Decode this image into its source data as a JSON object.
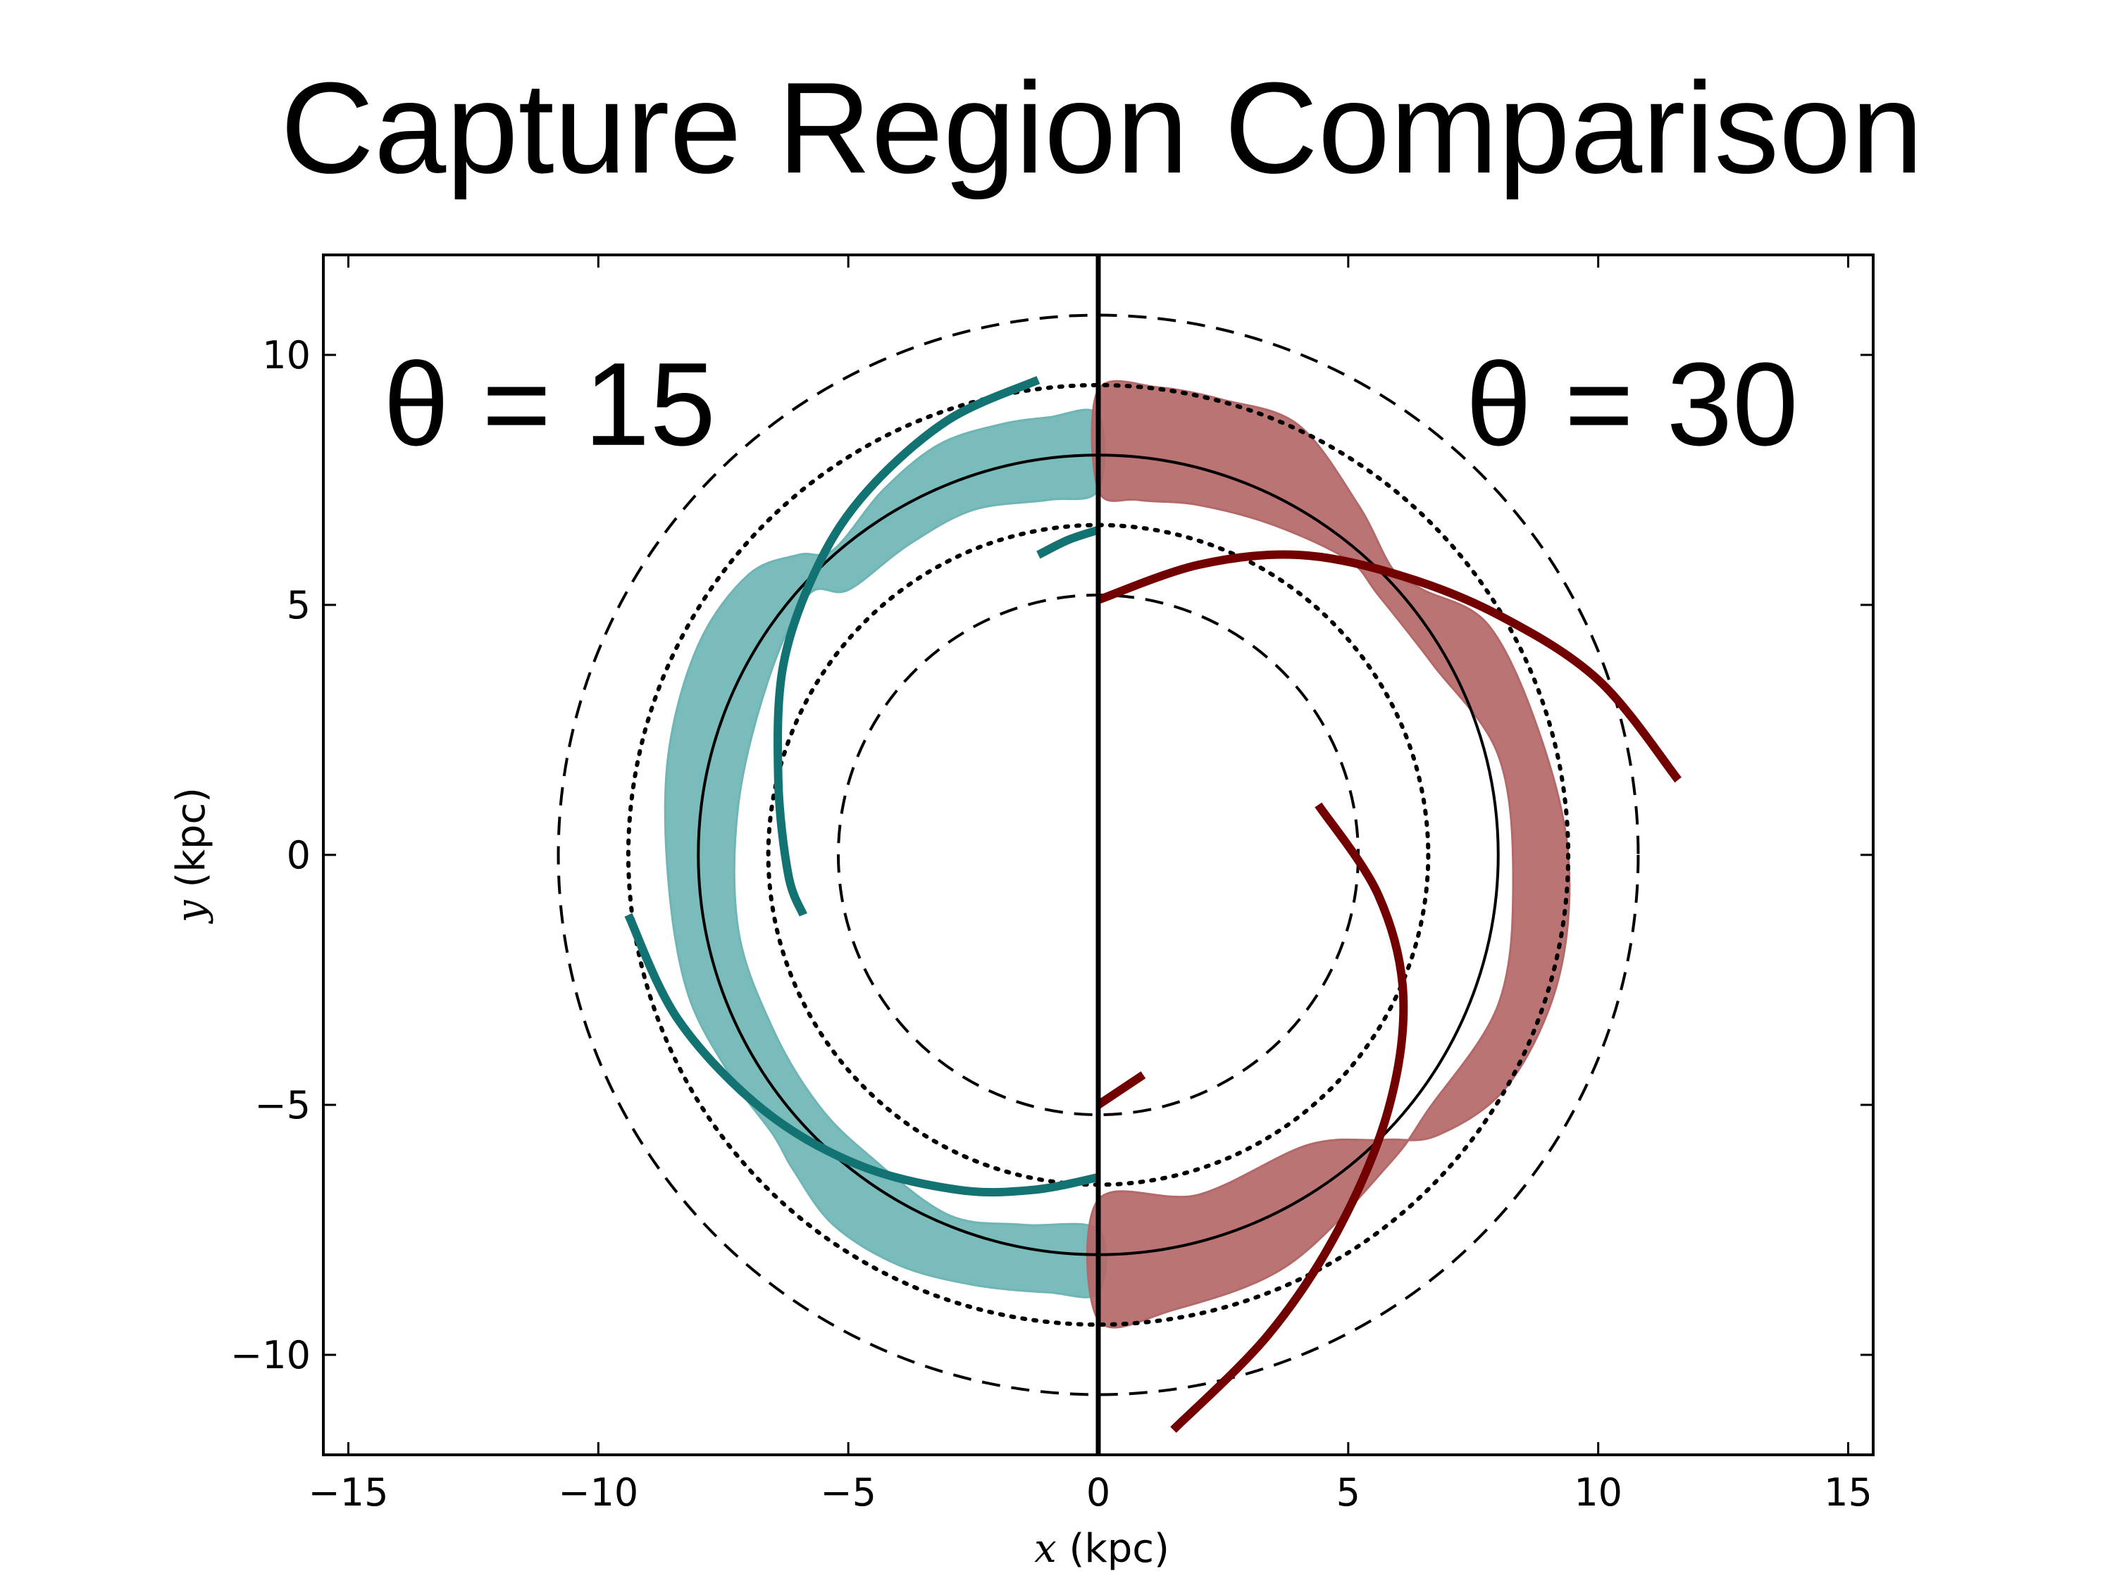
{
  "chart_data": {
    "type": "line",
    "title": "Capture Region Comparison",
    "xlabel": "x (kpc)",
    "ylabel": "y (kpc)",
    "xlabel_var": "x",
    "xlabel_unit": "(kpc)",
    "ylabel_var": "y",
    "ylabel_unit": "(kpc)",
    "xlim": [
      -15.5,
      15.5
    ],
    "ylim": [
      -12,
      12
    ],
    "xticks": [
      -15,
      -10,
      -5,
      0,
      5,
      10,
      15
    ],
    "yticks": [
      -10,
      -5,
      0,
      5,
      10
    ],
    "xtick_labels": [
      "−15",
      "−10",
      "−5",
      "0",
      "5",
      "10",
      "15"
    ],
    "ytick_labels": [
      "−10",
      "−5",
      "0",
      "5",
      "10"
    ],
    "divider": {
      "x": 0
    },
    "reference_circles": [
      {
        "name": "outer-dashed",
        "radius": 10.8,
        "style": "dashed"
      },
      {
        "name": "outer-dotted",
        "radius": 9.4,
        "style": "dotted"
      },
      {
        "name": "solar",
        "radius": 8.0,
        "style": "solid"
      },
      {
        "name": "inner-dotted",
        "radius": 6.6,
        "style": "dotted"
      },
      {
        "name": "inner-dashed",
        "radius": 5.2,
        "style": "dashed"
      }
    ],
    "annotations": [
      {
        "text": "θ = 15",
        "x": -14.3,
        "y": 8.2,
        "align": "start"
      },
      {
        "text": "θ = 30",
        "x": 14.0,
        "y": 8.2,
        "align": "end"
      }
    ],
    "panels": [
      {
        "name": "theta-15",
        "side": "left",
        "color": "#137272",
        "region_color": "#6fb5b5",
        "region": [
          [
            0,
            8.8
          ],
          [
            -1.0,
            8.75
          ],
          [
            -2.0,
            8.6
          ],
          [
            -3.2,
            8.2
          ],
          [
            -4.3,
            7.3
          ],
          [
            -5.3,
            6.1
          ],
          [
            -6.0,
            6.0
          ],
          [
            -7.0,
            5.6
          ],
          [
            -8.0,
            4.2
          ],
          [
            -8.6,
            2.0
          ],
          [
            -8.6,
            -0.5
          ],
          [
            -8.2,
            -2.8
          ],
          [
            -7.3,
            -4.5
          ],
          [
            -6.5,
            -5.6
          ],
          [
            -6.1,
            -6.3
          ],
          [
            -5.3,
            -7.4
          ],
          [
            -4.0,
            -8.2
          ],
          [
            -2.5,
            -8.6
          ],
          [
            -1.0,
            -8.75
          ],
          [
            0,
            -8.75
          ],
          [
            0,
            -7.5
          ],
          [
            -1.5,
            -7.4
          ],
          [
            -3.0,
            -7.2
          ],
          [
            -4.6,
            -6.0
          ],
          [
            -5.6,
            -5.0
          ],
          [
            -6.5,
            -3.5
          ],
          [
            -7.2,
            -1.5
          ],
          [
            -7.2,
            1.0
          ],
          [
            -6.6,
            3.5
          ],
          [
            -5.8,
            5.2
          ],
          [
            -5.0,
            5.3
          ],
          [
            -3.8,
            6.2
          ],
          [
            -2.5,
            6.9
          ],
          [
            -1.0,
            7.1
          ],
          [
            0,
            7.3
          ]
        ],
        "arms": [
          [
            [
              -1.2,
              9.5
            ],
            [
              -3.0,
              8.7
            ],
            [
              -4.6,
              7.3
            ],
            [
              -5.6,
              5.8
            ],
            [
              -6.3,
              3.8
            ],
            [
              -6.4,
              1.5
            ],
            [
              -6.2,
              -0.4
            ],
            [
              -5.9,
              -1.2
            ]
          ],
          [
            [
              -1.2,
              6.0
            ],
            [
              -0.6,
              6.3
            ],
            [
              0,
              6.5
            ]
          ],
          [
            [
              -9.4,
              -1.2
            ],
            [
              -8.4,
              -3.3
            ],
            [
              -6.7,
              -5.1
            ],
            [
              -4.8,
              -6.2
            ],
            [
              -2.8,
              -6.7
            ],
            [
              -1.3,
              -6.7
            ],
            [
              0,
              -6.45
            ]
          ]
        ]
      },
      {
        "name": "theta-30",
        "side": "right",
        "color": "#720000",
        "region_color": "#b46868",
        "region": [
          [
            0,
            9.3
          ],
          [
            1.2,
            9.35
          ],
          [
            2.5,
            9.1
          ],
          [
            4.0,
            8.6
          ],
          [
            5.2,
            7.0
          ],
          [
            5.9,
            5.7
          ],
          [
            6.5,
            5.3
          ],
          [
            7.8,
            4.6
          ],
          [
            8.8,
            2.5
          ],
          [
            9.4,
            0.0
          ],
          [
            9.2,
            -2.5
          ],
          [
            8.2,
            -4.6
          ],
          [
            6.8,
            -5.6
          ],
          [
            5.7,
            -5.7
          ],
          [
            4.2,
            -5.8
          ],
          [
            2.0,
            -6.8
          ],
          [
            0,
            -6.9
          ],
          [
            0,
            -9.3
          ],
          [
            1.5,
            -9.1
          ],
          [
            3.8,
            -8.2
          ],
          [
            5.8,
            -6.2
          ],
          [
            6.6,
            -5.1
          ],
          [
            8.0,
            -3.0
          ],
          [
            8.3,
            -0.5
          ],
          [
            8.0,
            2.0
          ],
          [
            6.7,
            3.8
          ],
          [
            5.6,
            5.2
          ],
          [
            5.0,
            5.9
          ],
          [
            3.5,
            6.6
          ],
          [
            2.0,
            7.0
          ],
          [
            0.8,
            7.1
          ],
          [
            0,
            7.3
          ]
        ],
        "arms": [
          [
            [
              0,
              5.1
            ],
            [
              2.0,
              5.8
            ],
            [
              4.0,
              6.0
            ],
            [
              6.0,
              5.6
            ],
            [
              8.0,
              4.8
            ],
            [
              10.0,
              3.5
            ],
            [
              11.6,
              1.5
            ]
          ],
          [
            [
              4.4,
              1.0
            ],
            [
              5.6,
              -0.8
            ],
            [
              6.1,
              -2.8
            ],
            [
              5.8,
              -5.1
            ],
            [
              4.8,
              -7.5
            ],
            [
              3.4,
              -9.6
            ],
            [
              1.5,
              -11.5
            ]
          ],
          [
            [
              0,
              -5.0
            ],
            [
              0.9,
              -4.4
            ]
          ]
        ]
      }
    ]
  }
}
